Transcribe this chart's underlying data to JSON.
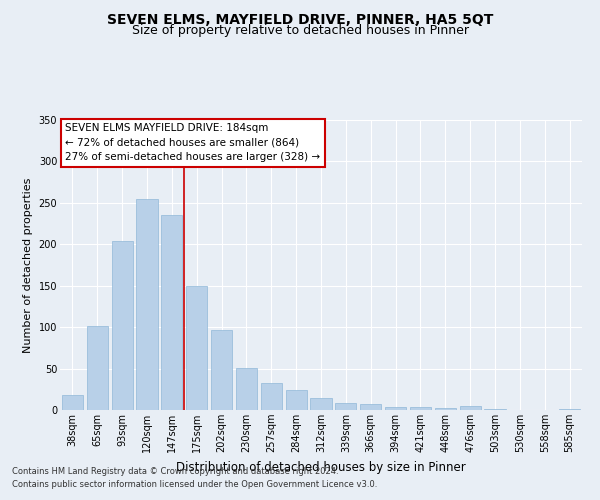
{
  "title": "SEVEN ELMS, MAYFIELD DRIVE, PINNER, HA5 5QT",
  "subtitle": "Size of property relative to detached houses in Pinner",
  "xlabel": "Distribution of detached houses by size in Pinner",
  "ylabel": "Number of detached properties",
  "categories": [
    "38sqm",
    "65sqm",
    "93sqm",
    "120sqm",
    "147sqm",
    "175sqm",
    "202sqm",
    "230sqm",
    "257sqm",
    "284sqm",
    "312sqm",
    "339sqm",
    "366sqm",
    "394sqm",
    "421sqm",
    "448sqm",
    "476sqm",
    "503sqm",
    "530sqm",
    "558sqm",
    "585sqm"
  ],
  "values": [
    18,
    101,
    204,
    255,
    235,
    150,
    96,
    51,
    33,
    24,
    15,
    9,
    7,
    4,
    4,
    2,
    5,
    1,
    0,
    0,
    1
  ],
  "bar_color": "#b8d0e8",
  "bar_edge_color": "#90b8d8",
  "vline_index": 4.5,
  "vline_color": "#cc0000",
  "annotation_line1": "SEVEN ELMS MAYFIELD DRIVE: 184sqm",
  "annotation_line2": "← 72% of detached houses are smaller (864)",
  "annotation_line3": "27% of semi-detached houses are larger (328) →",
  "ylim": [
    0,
    350
  ],
  "yticks": [
    0,
    50,
    100,
    150,
    200,
    250,
    300,
    350
  ],
  "bg_color": "#e8eef5",
  "plot_bg_color": "#e8eef5",
  "footer_line1": "Contains HM Land Registry data © Crown copyright and database right 2024.",
  "footer_line2": "Contains public sector information licensed under the Open Government Licence v3.0.",
  "title_fontsize": 10,
  "subtitle_fontsize": 9,
  "tick_fontsize": 7,
  "ylabel_fontsize": 8,
  "xlabel_fontsize": 8.5,
  "annotation_fontsize": 7.5,
  "footer_fontsize": 6
}
